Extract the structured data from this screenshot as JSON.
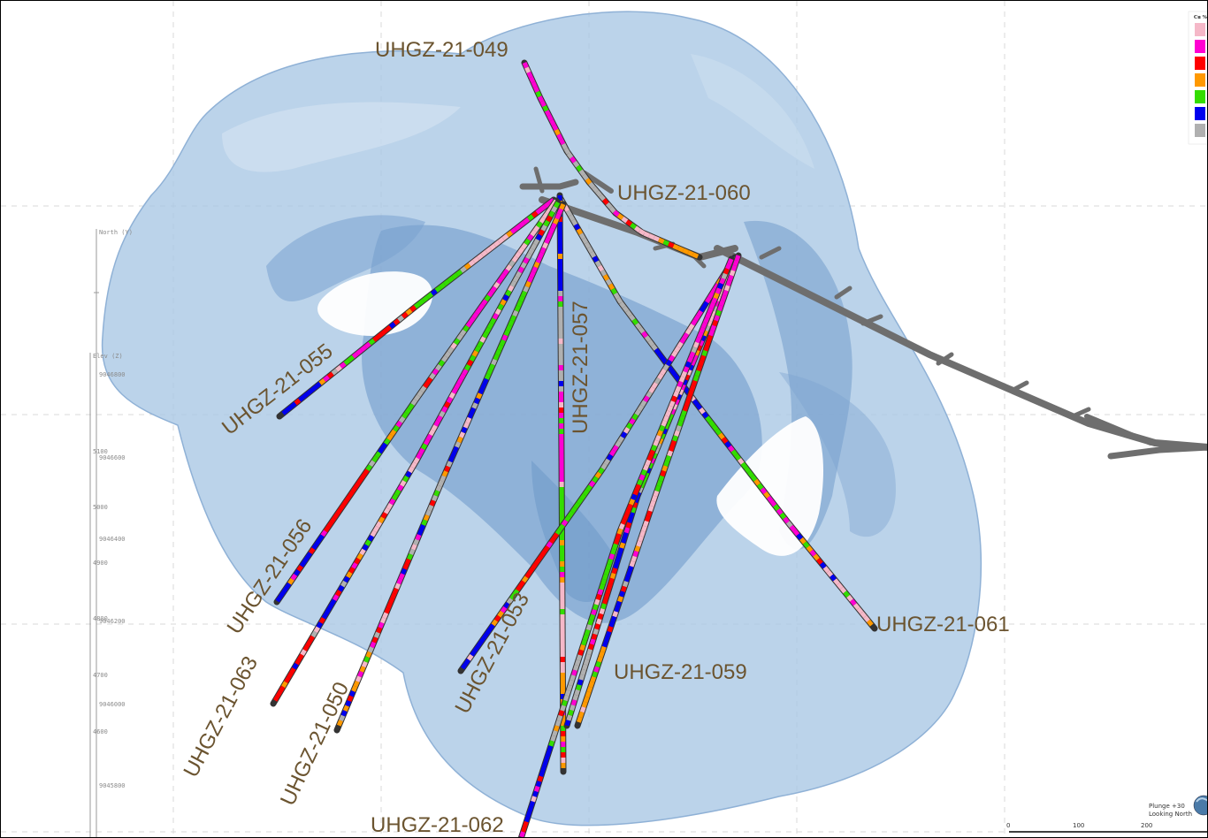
{
  "holes": [
    {
      "id": "UHGZ-21-049"
    },
    {
      "id": "UHGZ-21-060"
    },
    {
      "id": "UHGZ-21-055"
    },
    {
      "id": "UHGZ-21-057"
    },
    {
      "id": "UHGZ-21-056"
    },
    {
      "id": "UHGZ-21-063"
    },
    {
      "id": "UHGZ-21-050"
    },
    {
      "id": "UHGZ-21-053"
    },
    {
      "id": "UHGZ-21-059"
    },
    {
      "id": "UHGZ-21-061"
    },
    {
      "id": "UHGZ-21-062"
    }
  ],
  "north_axis": {
    "title": "North (Y)",
    "ticks": [
      "9046800",
      "9046600",
      "9046400",
      "9046200",
      "9046000",
      "9045800"
    ]
  },
  "elev_axis": {
    "title": "Elev (Z)",
    "ticks": [
      "5100",
      "5000",
      "4900",
      "4800",
      "4700",
      "4600"
    ]
  },
  "legend": {
    "title": "Cu %",
    "colors": [
      "#f5b8c8",
      "#ff00d2",
      "#ff0000",
      "#ff9900",
      "#33dd00",
      "#0000ee",
      "#b0b0b0"
    ]
  },
  "orientation": {
    "plunge": "Plunge +30",
    "azimuth": "Looking North"
  },
  "scale_bar": {
    "ticks": [
      "0",
      "100",
      "200"
    ]
  },
  "colors": {
    "solid_fill": "#a8c6e4",
    "solid_dark": "#7aa3cf",
    "tunnel": "#6e6e6e",
    "label": "#6b5430"
  }
}
